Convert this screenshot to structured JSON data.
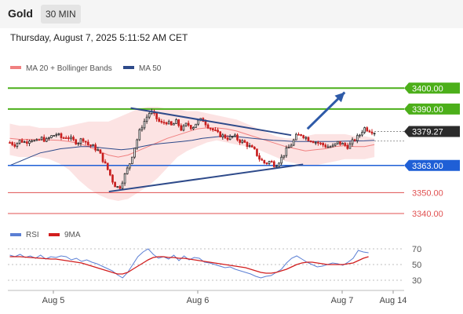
{
  "header": {
    "asset": "Gold",
    "timeframe": "30 MIN",
    "timestamp": "Thursday, August 7, 2025 5:11:52 AM CET"
  },
  "colors": {
    "bollinger": "#f08080",
    "ma50": "#2e4a8a",
    "resistance": "#4caf1a",
    "support": "#1f5fd6",
    "red_level": "#e05050",
    "candle_up": "#2a2a2a",
    "candle_down": "#c81e1e",
    "rsi": "#5b7fd4",
    "rsi_ma": "#d21e1e"
  },
  "chart_data": [
    {
      "type": "candlestick",
      "legend": [
        {
          "label": "MA 20 + Bollinger Bands",
          "color": "#f08080"
        },
        {
          "label": "MA 50",
          "color": "#2e4a8a"
        }
      ],
      "ylim": [
        3337,
        3408
      ],
      "x_labels": [
        "Aug 5",
        "Aug 6",
        "Aug 7",
        "Aug 14"
      ],
      "current_price": "3379.27",
      "levels": [
        {
          "value": 3400.0,
          "label": "3400.00",
          "kind": "resistance"
        },
        {
          "value": 3390.0,
          "label": "3390.00",
          "kind": "resistance"
        },
        {
          "value": 3363.0,
          "label": "3363.00",
          "kind": "support"
        },
        {
          "value": 3350.0,
          "label": "3350.00",
          "kind": "minor"
        },
        {
          "value": 3340.0,
          "label": "3340.00",
          "kind": "minor"
        }
      ],
      "close_path": [
        3374,
        3373,
        3375,
        3374,
        3376,
        3374,
        3376,
        3375,
        3377,
        3378,
        3376,
        3377,
        3375,
        3374,
        3376,
        3373,
        3372,
        3370,
        3365,
        3360,
        3354,
        3352,
        3358,
        3364,
        3372,
        3380,
        3385,
        3389,
        3386,
        3383,
        3384,
        3382,
        3384,
        3380,
        3383,
        3381,
        3384,
        3385,
        3382,
        3380,
        3378,
        3377,
        3376,
        3377,
        3375,
        3374,
        3372,
        3370,
        3366,
        3364,
        3365,
        3363,
        3366,
        3370,
        3373,
        3377,
        3378,
        3376,
        3375,
        3374,
        3373,
        3372,
        3372,
        3374,
        3373,
        3372,
        3375,
        3377,
        3381,
        3380,
        3379
      ],
      "ma20": [
        3376,
        3375.5,
        3375.5,
        3375.3,
        3375.2,
        3375,
        3374.5,
        3373.5,
        3372,
        3370,
        3368,
        3367,
        3368,
        3370,
        3372,
        3374,
        3376,
        3377.5,
        3379,
        3380.5,
        3381,
        3381,
        3380.5,
        3379.5,
        3378,
        3376.5,
        3375,
        3373.5,
        3372,
        3371,
        3370,
        3370.5,
        3371,
        3372,
        3372.5,
        3372,
        3372,
        3373
      ],
      "bb_upper": [
        3383,
        3382,
        3382,
        3381,
        3381,
        3381,
        3382,
        3383,
        3384,
        3384,
        3384,
        3386,
        3388,
        3390,
        3391,
        3391,
        3390,
        3390,
        3389,
        3389,
        3388,
        3387,
        3386,
        3385,
        3383,
        3381,
        3379,
        3377,
        3376,
        3376,
        3377,
        3378,
        3378,
        3378,
        3378,
        3377,
        3377,
        3376
      ],
      "bb_lower": [
        3368,
        3367,
        3367,
        3367,
        3366,
        3364,
        3361,
        3356,
        3352,
        3349,
        3347,
        3346,
        3347,
        3350,
        3353,
        3357,
        3362,
        3367,
        3370,
        3372,
        3374,
        3375,
        3374,
        3373,
        3372,
        3371,
        3369,
        3367,
        3365,
        3364,
        3363,
        3363,
        3364,
        3365,
        3366,
        3366,
        3366,
        3367
      ],
      "ma50": [
        3363,
        3365,
        3367,
        3369,
        3370,
        3371,
        3371.5,
        3372,
        3372,
        3371.5,
        3371,
        3370.5,
        3371,
        3372,
        3373,
        3373.5,
        3374,
        3374.5,
        3375,
        3376,
        3376.5,
        3377,
        3377,
        3376.5,
        3376,
        3375.5,
        3375,
        3374.8,
        3374.5,
        3374.5,
        3374.5,
        3374.5,
        3374.5,
        3374.6,
        3374.7,
        3374.8,
        3375
      ],
      "trendlines": [
        {
          "from": [
            0.31,
            3390.5
          ],
          "to": [
            0.715,
            3377.5
          ]
        },
        {
          "from": [
            0.255,
            3350.5
          ],
          "to": [
            0.745,
            3363.5
          ]
        }
      ],
      "projection_arrow": {
        "from": [
          0.756,
          3380.5
        ],
        "to": [
          0.85,
          3398
        ]
      }
    },
    {
      "type": "line",
      "legend": [
        {
          "label": "RSI",
          "color": "#5b7fd4"
        },
        {
          "label": "9MA",
          "color": "#d21e1e"
        }
      ],
      "ylim": [
        20,
        78
      ],
      "y_ticks": [
        "70",
        "50",
        "30"
      ],
      "rsi": [
        62,
        60,
        63,
        59,
        61,
        58,
        62,
        57,
        60,
        59,
        61,
        60,
        56,
        58,
        54,
        56,
        53,
        51,
        48,
        45,
        42,
        37,
        33,
        40,
        50,
        60,
        66,
        70,
        63,
        58,
        60,
        57,
        62,
        55,
        61,
        56,
        59,
        58,
        53,
        52,
        50,
        48,
        46,
        47,
        44,
        42,
        40,
        38,
        35,
        33,
        35,
        36,
        40,
        44,
        52,
        58,
        61,
        57,
        53,
        50,
        47,
        48,
        50,
        52,
        51,
        49,
        53,
        58,
        68,
        66,
        65
      ],
      "rsi_ma": [
        60,
        60,
        60,
        59.5,
        59,
        58.5,
        58,
        57.5,
        57,
        57,
        56,
        55,
        54,
        53,
        52,
        50,
        48,
        46,
        44,
        42,
        40,
        38,
        38,
        40,
        44,
        48,
        52,
        56,
        59,
        60,
        60,
        59,
        59,
        58,
        58,
        57,
        56,
        55,
        54,
        53,
        52,
        51,
        50,
        49,
        48,
        47,
        46,
        44,
        42,
        40,
        39,
        39,
        40,
        42,
        44,
        47,
        50,
        52,
        53,
        53,
        52,
        51,
        50,
        50,
        50,
        50,
        51,
        52,
        55,
        58,
        60
      ]
    }
  ]
}
